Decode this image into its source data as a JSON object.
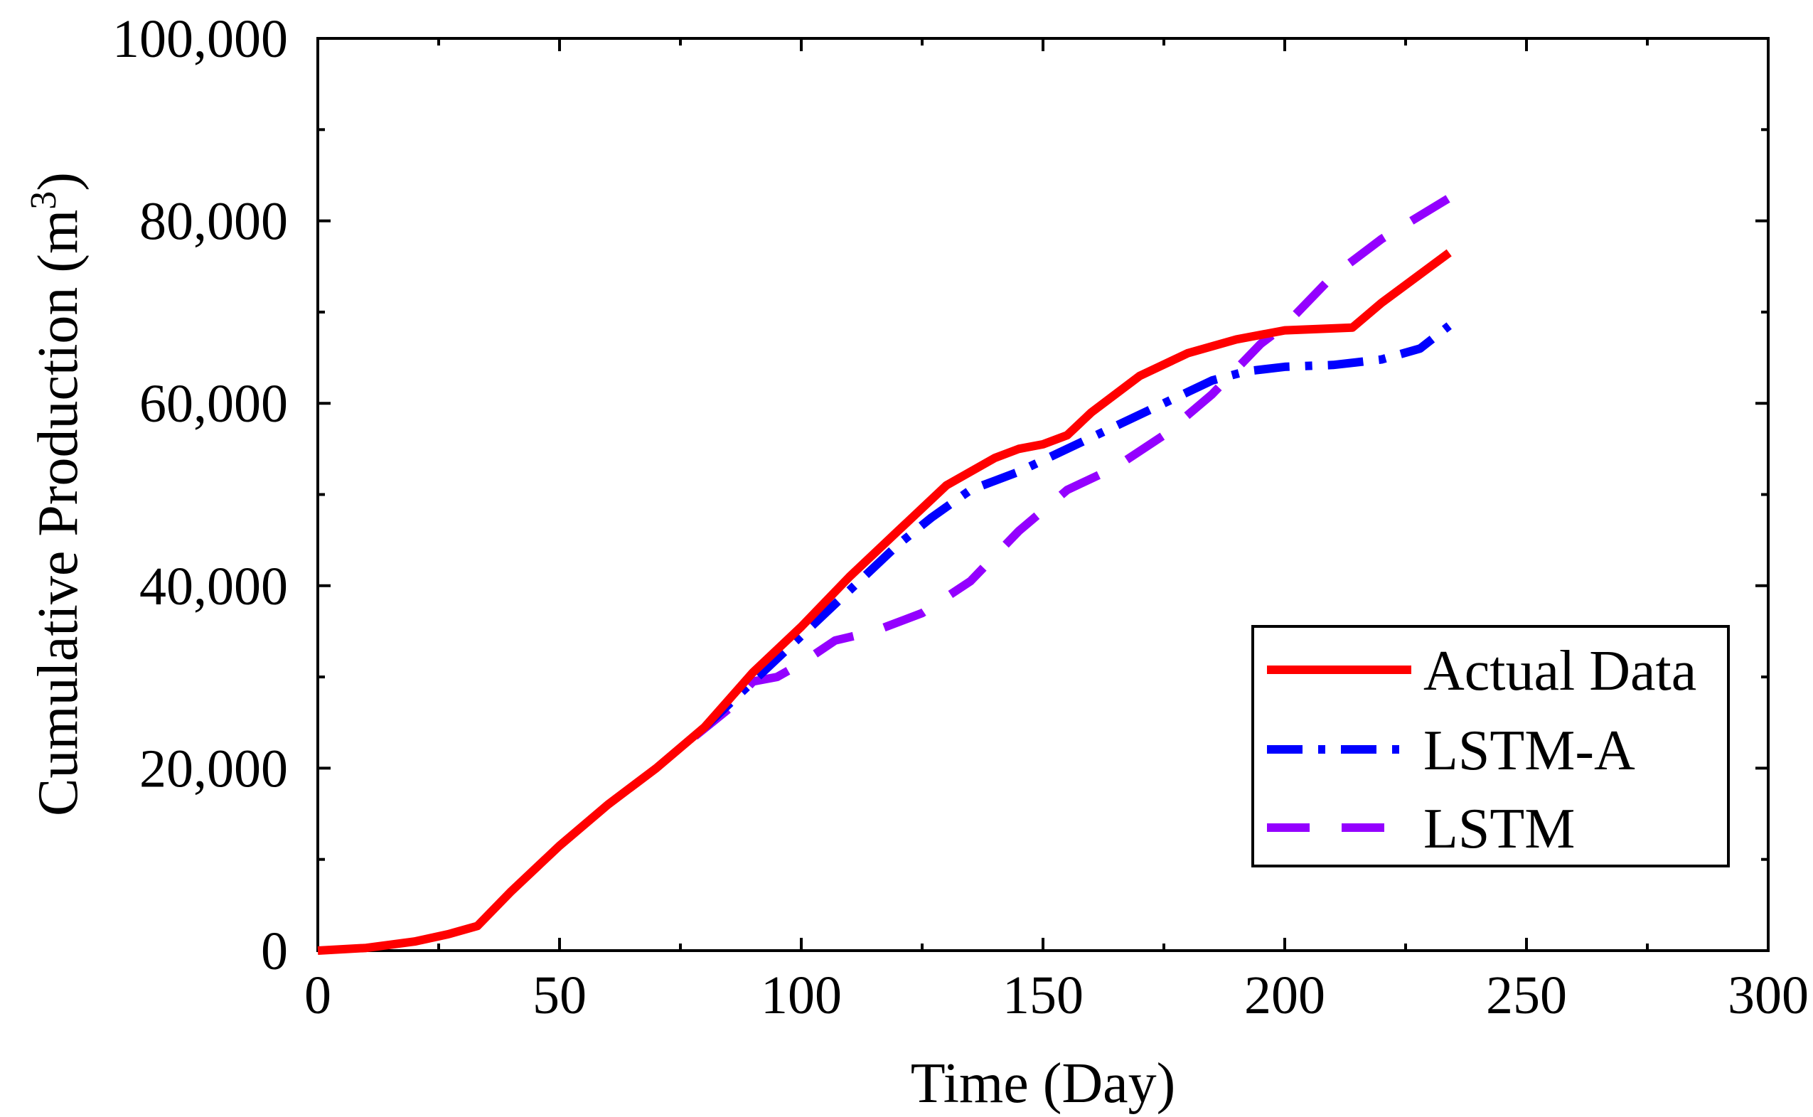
{
  "chart_data": {
    "type": "line",
    "title": "",
    "xlabel": "Time (Day)",
    "ylabel_main": "Cumulative Production (m",
    "ylabel_sup": "3",
    "ylabel_close": ")",
    "xlim": [
      0,
      300
    ],
    "ylim": [
      0,
      100000
    ],
    "x_ticks": [
      0,
      50,
      100,
      150,
      200,
      250,
      300
    ],
    "x_tick_labels": [
      "0",
      "50",
      "100",
      "150",
      "200",
      "250",
      "300"
    ],
    "y_ticks": [
      0,
      20000,
      40000,
      60000,
      80000,
      100000
    ],
    "y_tick_labels": [
      "0",
      "20,000",
      "40,000",
      "60,000",
      "80,000",
      "100,000"
    ],
    "grid": false,
    "legend_position": "bottom-right",
    "series": [
      {
        "name": "Actual Data",
        "color": "#ff0000",
        "style": "solid",
        "points": [
          [
            0,
            0
          ],
          [
            10,
            300
          ],
          [
            20,
            1000
          ],
          [
            27,
            1800
          ],
          [
            33,
            2700
          ],
          [
            40,
            6500
          ],
          [
            50,
            11500
          ],
          [
            60,
            16000
          ],
          [
            70,
            20000
          ],
          [
            80,
            24500
          ],
          [
            90,
            30500
          ],
          [
            100,
            35500
          ],
          [
            110,
            41000
          ],
          [
            120,
            46000
          ],
          [
            130,
            51000
          ],
          [
            140,
            54000
          ],
          [
            145,
            55000
          ],
          [
            150,
            55500
          ],
          [
            155,
            56500
          ],
          [
            160,
            59000
          ],
          [
            170,
            63000
          ],
          [
            180,
            65500
          ],
          [
            190,
            67000
          ],
          [
            200,
            68000
          ],
          [
            214,
            68300
          ],
          [
            220,
            71000
          ],
          [
            234,
            76500
          ]
        ]
      },
      {
        "name": "LSTM-A",
        "color": "#0000ff",
        "style": "dashdot",
        "points": [
          [
            80,
            24500
          ],
          [
            90,
            29500
          ],
          [
            100,
            34500
          ],
          [
            110,
            39500
          ],
          [
            120,
            44500
          ],
          [
            127,
            47500
          ],
          [
            135,
            50500
          ],
          [
            145,
            52500
          ],
          [
            155,
            55000
          ],
          [
            165,
            57500
          ],
          [
            175,
            60000
          ],
          [
            185,
            62500
          ],
          [
            192,
            63500
          ],
          [
            200,
            64000
          ],
          [
            210,
            64200
          ],
          [
            220,
            64800
          ],
          [
            228,
            66000
          ],
          [
            234,
            68500
          ]
        ]
      },
      {
        "name": "LSTM",
        "color": "#9400ff",
        "style": "dashed",
        "points": [
          [
            78,
            23500
          ],
          [
            85,
            26500
          ],
          [
            90,
            29500
          ],
          [
            95,
            30000
          ],
          [
            100,
            31500
          ],
          [
            107,
            34000
          ],
          [
            115,
            35000
          ],
          [
            125,
            37000
          ],
          [
            135,
            40500
          ],
          [
            145,
            46000
          ],
          [
            155,
            50500
          ],
          [
            165,
            53000
          ],
          [
            175,
            56500
          ],
          [
            185,
            61000
          ],
          [
            195,
            66500
          ],
          [
            200,
            68500
          ],
          [
            210,
            74000
          ],
          [
            220,
            78000
          ],
          [
            234,
            82500
          ]
        ]
      }
    ]
  }
}
